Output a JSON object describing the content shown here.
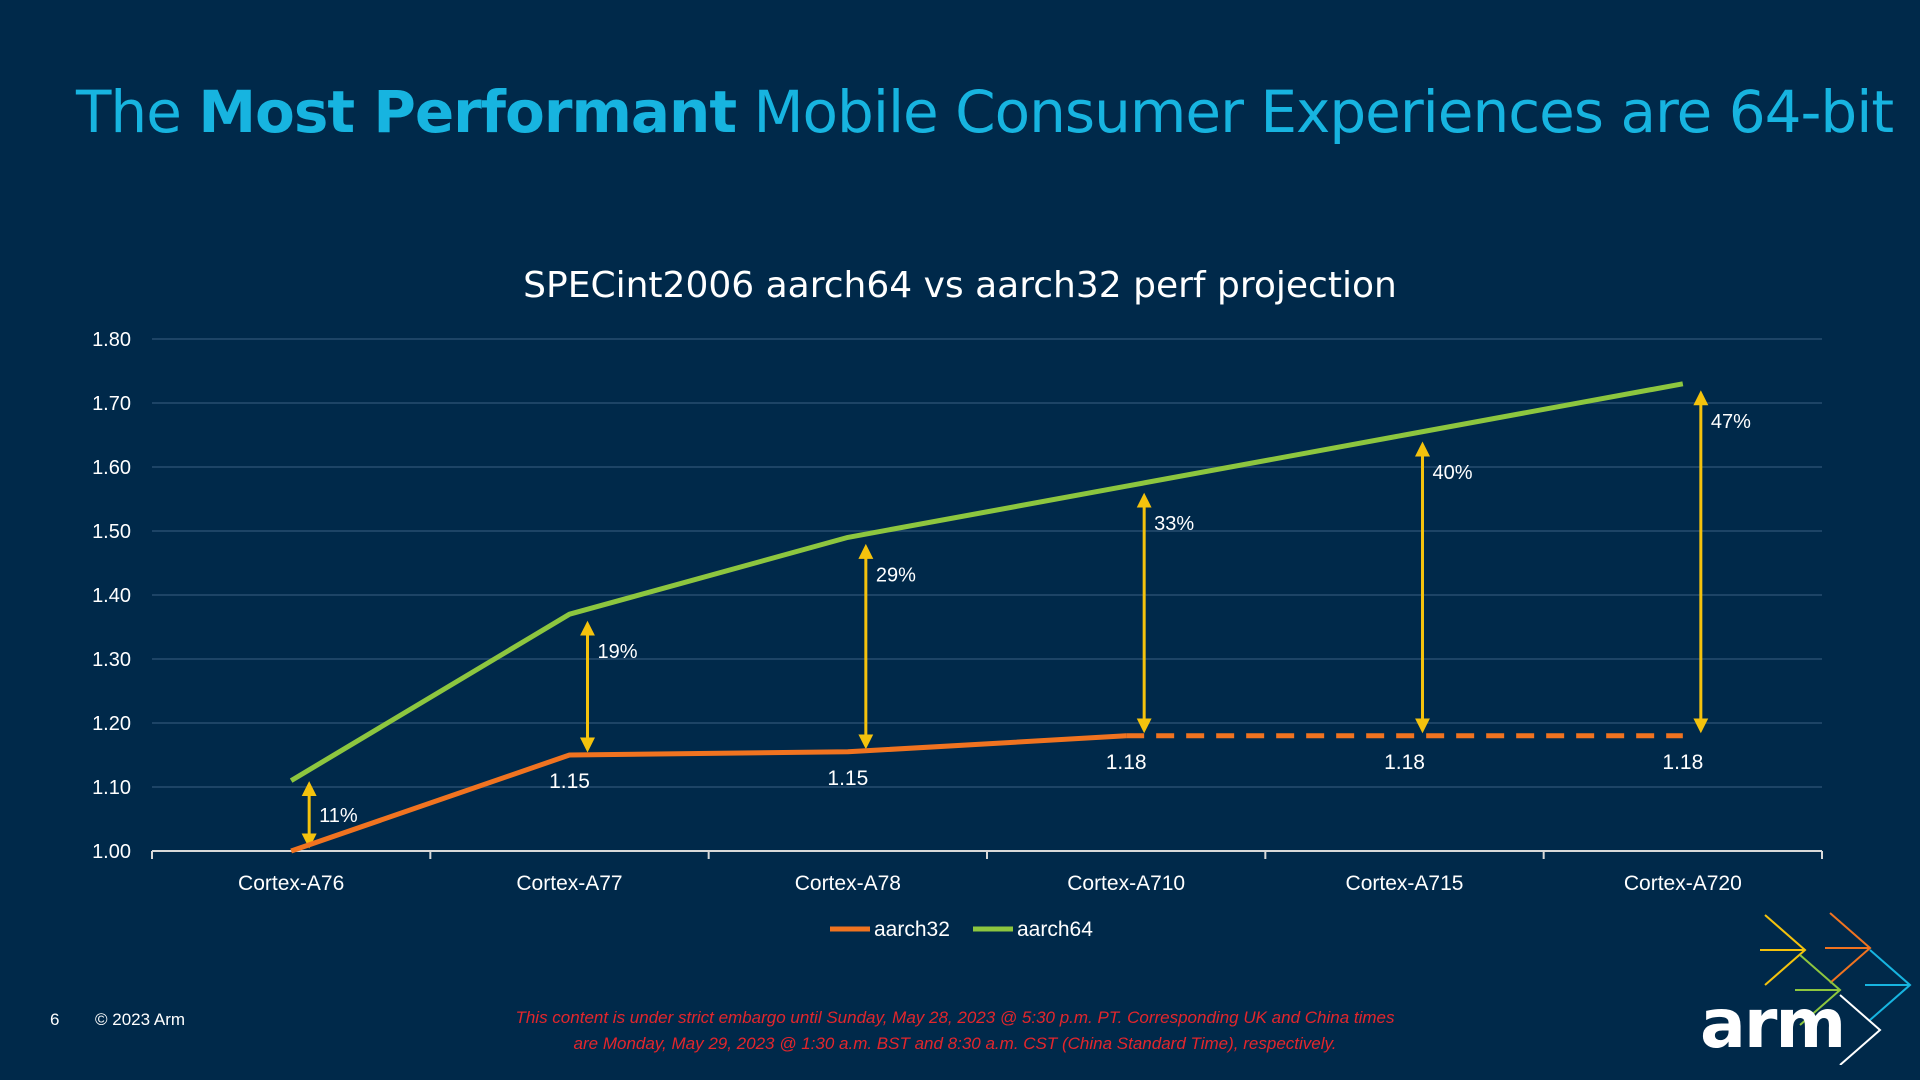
{
  "slide": {
    "title_pre": "The ",
    "title_bold": "Most Performant",
    "title_post": " Mobile Consumer Experiences are 64-bit",
    "page_number": "6",
    "copyright": "© 2023 Arm",
    "embargo_line1": "This content is under strict embargo until Sunday, May 28, 2023 @ 5:30 p.m. PT. Corresponding UK and China times",
    "embargo_line2": "are Monday, May 29, 2023 @ 1:30 a.m. BST and 8:30 a.m. CST (China Standard Time), respectively.",
    "logo_text": "arm"
  },
  "colors": {
    "background": "#00294a",
    "title": "#17b4e0",
    "aarch32": "#f07320",
    "aarch64": "#8dc63f",
    "arrow": "#f4c20d",
    "grid": "#1d4466",
    "embargo": "#e3262c"
  },
  "chart_data": {
    "type": "line",
    "title": "SPECint2006 aarch64 vs aarch32 perf projection",
    "categories": [
      "Cortex-A76",
      "Cortex-A77",
      "Cortex-A78",
      "Cortex-A710",
      "Cortex-A715",
      "Cortex-A720"
    ],
    "ylim": [
      1.0,
      1.8
    ],
    "yticks": [
      "1.00",
      "1.10",
      "1.20",
      "1.30",
      "1.40",
      "1.50",
      "1.60",
      "1.70",
      "1.80"
    ],
    "grid": true,
    "legend_position": "bottom",
    "series": [
      {
        "name": "aarch32",
        "values": [
          1.0,
          1.15,
          1.155,
          1.18,
          1.18,
          1.18
        ],
        "labels": [
          "",
          "1.15",
          "1.15",
          "1.18",
          "1.18",
          "1.18"
        ],
        "dashed_from_index": 3
      },
      {
        "name": "aarch64",
        "values": [
          1.11,
          1.37,
          1.49,
          1.57,
          1.65,
          1.73
        ]
      }
    ],
    "gain_labels": [
      "11%",
      "19%",
      "29%",
      "33%",
      "40%",
      "47%"
    ]
  }
}
